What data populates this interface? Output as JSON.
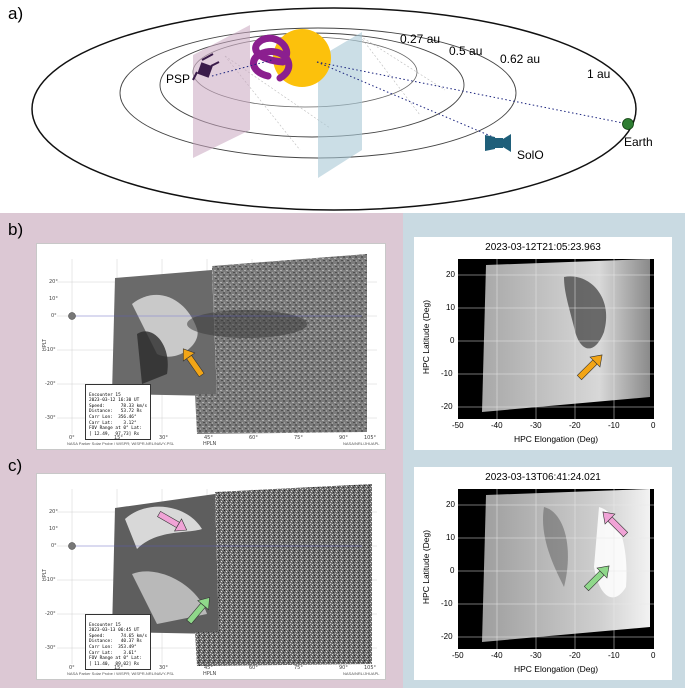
{
  "panel_a": {
    "label": "a)",
    "orbits": [
      "0.27 au",
      "0.5 au",
      "0.62 au",
      "1 au"
    ],
    "bodies": {
      "psp": "PSP",
      "earth": "Earth",
      "solo": "SolO"
    },
    "colors": {
      "sun": "#fcc10c",
      "cme": "#8b1f8f",
      "earth": "#2e7d32",
      "solo": "#1f5f7a",
      "psp": "#3a1c4a"
    }
  },
  "panel_b": {
    "label": "b)",
    "wispr": {
      "info": [
        "Encounter 15",
        "2023-03-12 16:30 UT",
        "Speed:      78.33 km/s",
        "Distance:   53.72 Rs",
        "Carr Lon:  356.46°",
        "Carr Lat:    3.12°",
        "FOV Range at 0° Lat:",
        "[ 12.49,  97.73] Rs"
      ],
      "credit_left": "NASA Parker Solar Probe / WISPR; WISPR-NRL/NAVY-PSL",
      "credit_right": "NASA/NRL/JHUAPL",
      "xlabel": "HPLN",
      "ylabel": "HPLT",
      "xticks": [
        "0°",
        "15°",
        "30°",
        "45°",
        "60°",
        "75°",
        "90°",
        "105°"
      ],
      "yticks": [
        "20°",
        "10°",
        "0°",
        "-10°",
        "-20°",
        "-30°"
      ],
      "arrow_color": "#f2a516"
    },
    "lasco": {
      "title": "2023-03-12T21:05:23.963",
      "xlabel": "HPC Elongation (Deg)",
      "ylabel": "HPC Latitude (Deg)",
      "xticks": [
        "-50",
        "-40",
        "-30",
        "-20",
        "-10",
        "0"
      ],
      "yticks": [
        "20",
        "10",
        "0",
        "-10",
        "-20"
      ],
      "arrow_color": "#f2a516"
    }
  },
  "panel_c": {
    "label": "c)",
    "wispr": {
      "info": [
        "Encounter 15",
        "2023-03-13 06:45 UT",
        "Speed:      74.65 km/s",
        "Distance:   40.37 Rs",
        "Carr Lon:  353.49°",
        "Carr Lat:    3.61°",
        "FOV Range at 0° Lat:",
        "[ 11.40,  89.02] Rs"
      ],
      "credit_left": "NASA Parker Solar Probe / WISPR; WISPR-NRL/NAVY-PSL",
      "credit_right": "NASA/NRL/JHUAPL",
      "xlabel": "HPLN",
      "ylabel": "HPLT",
      "xticks": [
        "0°",
        "15°",
        "30°",
        "45°",
        "60°",
        "75°",
        "90°",
        "105°"
      ],
      "yticks": [
        "20°",
        "10°",
        "0°",
        "-10°",
        "-20°",
        "-30°"
      ],
      "arrow_colors": [
        "#f0a3d6",
        "#8fd88a"
      ]
    },
    "lasco": {
      "title": "2023-03-13T06:41:24.021",
      "xlabel": "HPC Elongation (Deg)",
      "ylabel": "HPC Latitude (Deg)",
      "xticks": [
        "-50",
        "-40",
        "-30",
        "-20",
        "-10",
        "0"
      ],
      "yticks": [
        "20",
        "10",
        "0",
        "-10",
        "-20"
      ],
      "arrow_colors": [
        "#f0a3d6",
        "#8fd88a"
      ]
    }
  }
}
